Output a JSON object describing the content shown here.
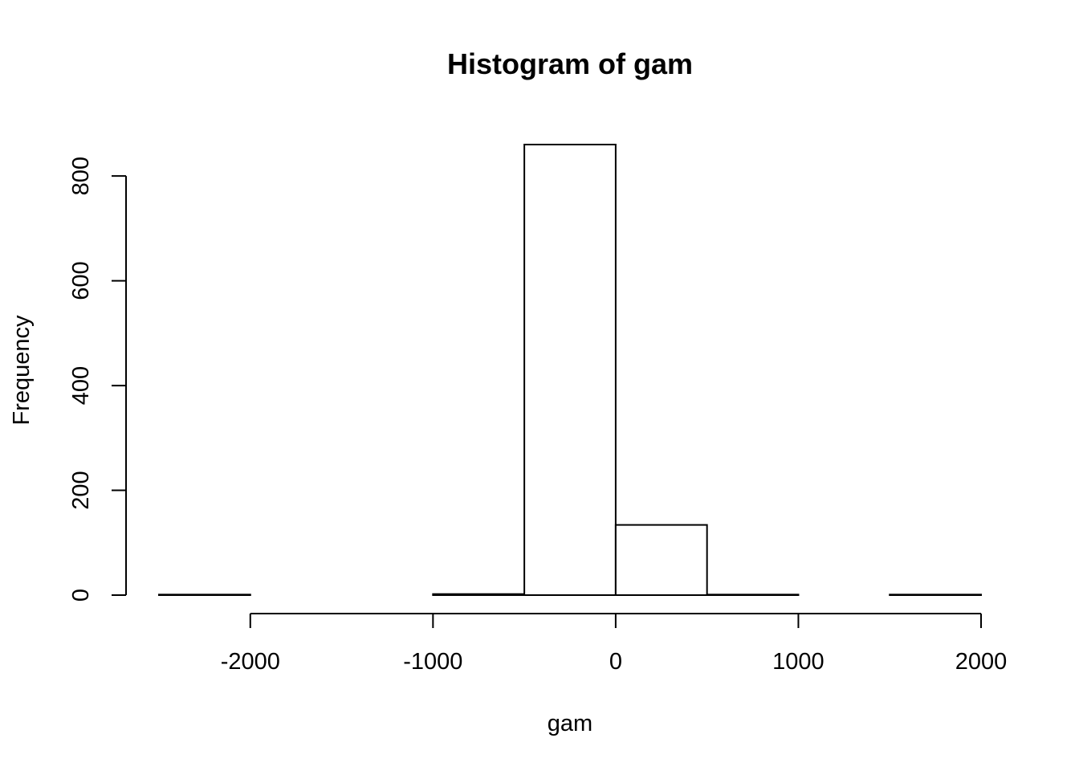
{
  "chart_data": {
    "type": "bar",
    "title": "Histogram of gam",
    "xlabel": "gam",
    "ylabel": "Frequency",
    "bins": [
      {
        "x0": -2500,
        "x1": -2000,
        "count": 1
      },
      {
        "x0": -2000,
        "x1": -1500,
        "count": 0
      },
      {
        "x0": -1500,
        "x1": -1000,
        "count": 0
      },
      {
        "x0": -1000,
        "x1": -500,
        "count": 2
      },
      {
        "x0": -500,
        "x1": 0,
        "count": 860
      },
      {
        "x0": 0,
        "x1": 500,
        "count": 134
      },
      {
        "x0": 500,
        "x1": 1000,
        "count": 1
      },
      {
        "x0": 1000,
        "x1": 1500,
        "count": 0
      },
      {
        "x0": 1500,
        "x1": 2000,
        "count": 1
      }
    ],
    "xticks": [
      -2000,
      -1000,
      0,
      1000,
      2000
    ],
    "xtick_labels": [
      "-2000",
      "-1000",
      "0",
      "1000",
      "2000"
    ],
    "yticks": [
      0,
      200,
      400,
      600,
      800
    ],
    "ytick_labels": [
      "0",
      "200",
      "400",
      "600",
      "800"
    ],
    "xlim": [
      -2500,
      2000
    ],
    "ylim": [
      0,
      860
    ],
    "grid": false,
    "legend": "none",
    "colors": {
      "bar_fill": "#ffffff",
      "bar_stroke": "#000000"
    }
  }
}
